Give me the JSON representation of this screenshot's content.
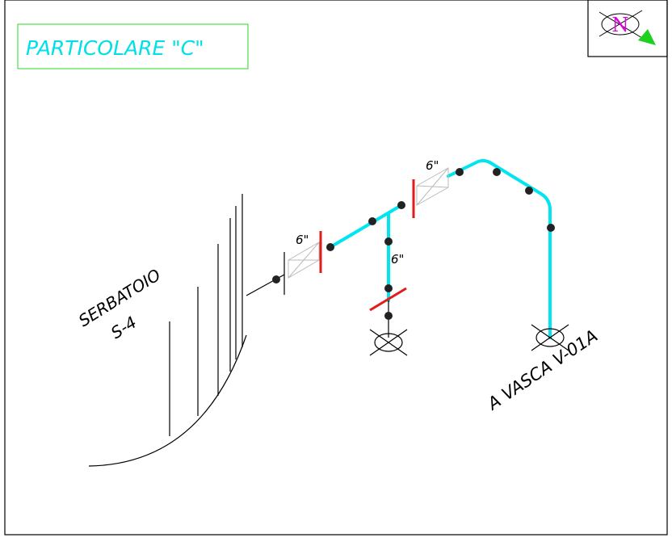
{
  "title": "PARTICOLARE \"C\"",
  "north": "N",
  "tank": {
    "name": "SERBATOIO",
    "code": "S-4"
  },
  "pipe_sizes": [
    "6\"",
    "6\"",
    "6\""
  ],
  "destination": "A VASCA V-01A"
}
